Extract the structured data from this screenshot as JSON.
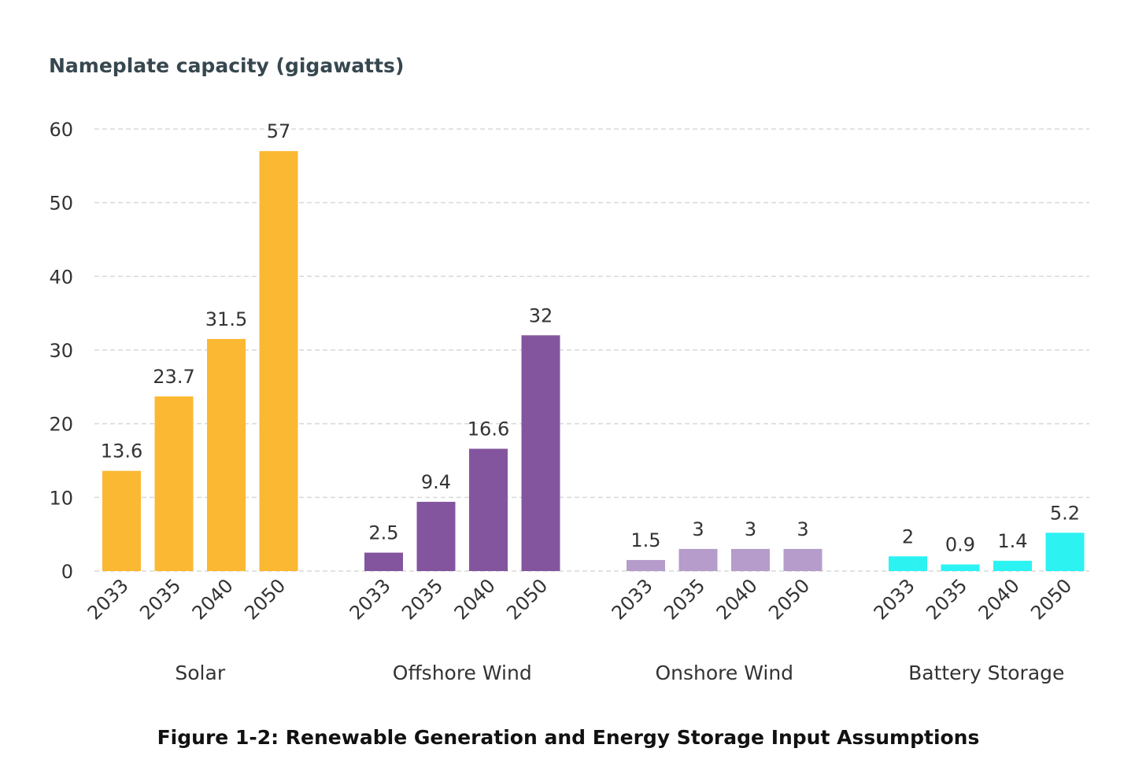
{
  "chart_data": {
    "type": "bar",
    "ylabel": "Nameplate capacity (gigawatts)",
    "caption": "Figure 1-2: Renewable Generation and Energy Storage Input Assumptions",
    "ylim": [
      0,
      60
    ],
    "yticks": [
      0,
      10,
      20,
      30,
      40,
      50,
      60
    ],
    "grid": true,
    "groups": [
      {
        "name": "Solar",
        "color": "#FBB832",
        "categories": [
          "2033",
          "2035",
          "2040",
          "2050"
        ],
        "values": [
          13.6,
          23.7,
          31.5,
          57
        ],
        "labels": [
          "13.6",
          "23.7",
          "31.5",
          "57"
        ]
      },
      {
        "name": "Offshore Wind",
        "color": "#84559F",
        "categories": [
          "2033",
          "2035",
          "2040",
          "2050"
        ],
        "values": [
          2.5,
          9.4,
          16.6,
          32
        ],
        "labels": [
          "2.5",
          "9.4",
          "16.6",
          "32"
        ]
      },
      {
        "name": "Onshore Wind",
        "color": "#B59CCB",
        "categories": [
          "2033",
          "2035",
          "2040",
          "2050"
        ],
        "values": [
          1.5,
          3,
          3,
          3
        ],
        "labels": [
          "1.5",
          "3",
          "3",
          "3"
        ]
      },
      {
        "name": "Battery Storage",
        "color": "#2DF2F2",
        "categories": [
          "2033",
          "2035",
          "2040",
          "2050"
        ],
        "values": [
          2,
          0.9,
          1.4,
          5.2
        ],
        "labels": [
          "2",
          "0.9",
          "1.4",
          "5.2"
        ]
      }
    ]
  }
}
